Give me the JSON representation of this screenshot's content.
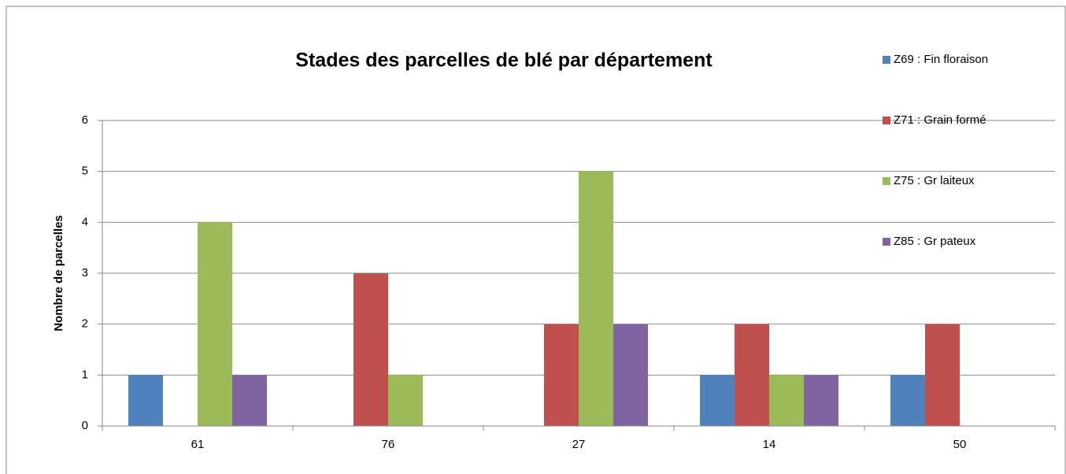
{
  "chart_data": {
    "type": "bar",
    "title": "Stades des parcelles de blé par département",
    "y_label": "Nombre de parcelles",
    "categories": [
      "61",
      "76",
      "27",
      "14",
      "50"
    ],
    "series": [
      {
        "name": "Z69 : Fin floraison",
        "color": "#4f81bd",
        "values": [
          1,
          0,
          0,
          1,
          1
        ]
      },
      {
        "name": "Z71 : Grain formé",
        "color": "#c0504d",
        "values": [
          0,
          3,
          2,
          2,
          2
        ]
      },
      {
        "name": "Z75 : Gr laiteux",
        "color": "#9bbb59",
        "values": [
          4,
          1,
          5,
          1,
          0
        ]
      },
      {
        "name": "Z85 : Gr pateux",
        "color": "#8064a2",
        "values": [
          1,
          0,
          2,
          1,
          0
        ]
      }
    ],
    "ylim": [
      0,
      6
    ],
    "yticks": [
      0,
      1,
      2,
      3,
      4,
      5,
      6
    ],
    "grid": true,
    "legend": "right"
  }
}
